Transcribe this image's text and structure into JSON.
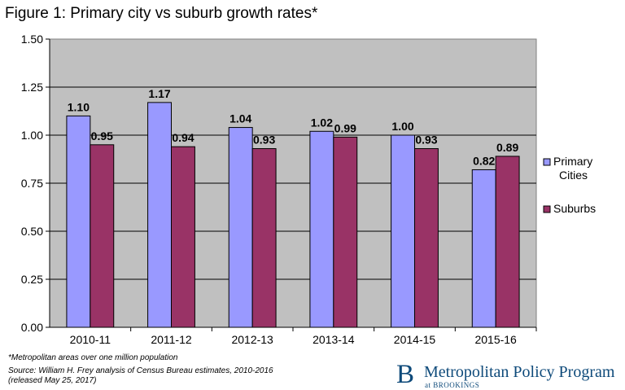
{
  "chart_data": {
    "type": "bar",
    "title": "Figure 1: Primary city vs suburb growth rates*",
    "categories": [
      "2010-11",
      "2011-12",
      "2012-13",
      "2013-14",
      "2014-15",
      "2015-16"
    ],
    "series": [
      {
        "name": "Primary Cities",
        "values": [
          1.1,
          1.17,
          1.04,
          1.02,
          1.0,
          0.82
        ],
        "labels": [
          "1.10",
          "1.17",
          "1.04",
          "1.02",
          "1.00",
          "0.82"
        ],
        "color": "#9999ff"
      },
      {
        "name": "Suburbs",
        "values": [
          0.95,
          0.94,
          0.93,
          0.99,
          0.93,
          0.89
        ],
        "labels": [
          "0.95",
          "0.94",
          "0.93",
          "0.99",
          "0.93",
          "0.89"
        ],
        "color": "#993366"
      }
    ],
    "ylim": [
      0,
      1.5
    ],
    "yticks": [
      "0.00",
      "0.25",
      "0.50",
      "0.75",
      "1.00",
      "1.25",
      "1.50"
    ],
    "grid": true,
    "plot_background": "#c0c0c0",
    "legend": "right"
  },
  "legend": {
    "primary_line1": "Primary",
    "primary_line2": "Cities",
    "suburbs": "Suburbs"
  },
  "footnote": "*Metropolitan areas over one million population",
  "source": "Source: William H. Frey analysis of Census Bureau estimates, 2010-2016 (released May 25, 2017)",
  "logo": {
    "letter": "B",
    "name": "Metropolitan Policy Program",
    "sub": "at BROOKINGS"
  }
}
